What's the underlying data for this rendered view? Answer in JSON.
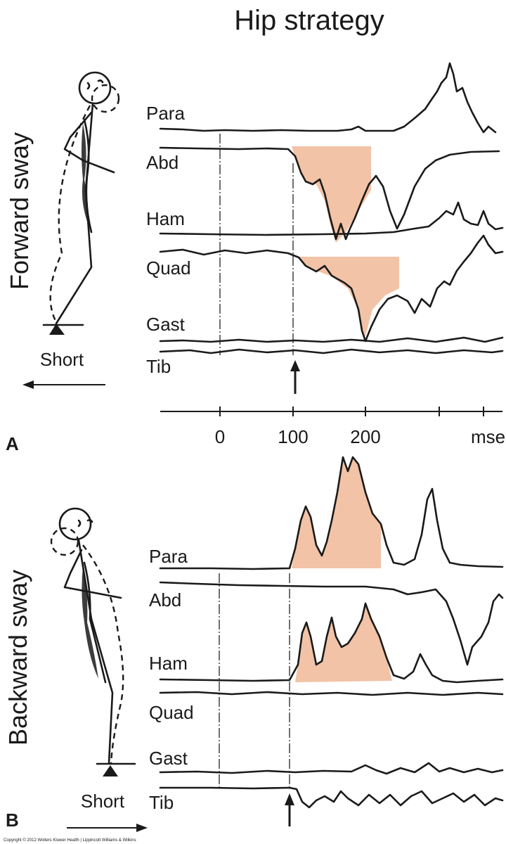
{
  "title": "Hip strategy",
  "panels": [
    {
      "panel_letter": "A",
      "side_label": "Forward sway",
      "platform_label": "Short",
      "arrow_direction": "left",
      "muscles": [
        "Para",
        "Abd",
        "Ham",
        "Quad",
        "Gast",
        "Tib"
      ],
      "shaded": [
        "Abd",
        "Quad"
      ],
      "stimulus_marker_ms": 90
    },
    {
      "panel_letter": "B",
      "side_label": "Backward sway",
      "platform_label": "Short",
      "arrow_direction": "right",
      "muscles": [
        "Para",
        "Abd",
        "Ham",
        "Quad",
        "Gast",
        "Tib"
      ],
      "shaded": [
        "Para",
        "Ham"
      ],
      "stimulus_marker_ms": 90
    }
  ],
  "time_axis": {
    "ticks": [
      "0",
      "100",
      "200"
    ],
    "unit": "msec"
  },
  "colors": {
    "shading": "#f2c3a6",
    "ink": "#1a1a1a"
  },
  "footer": "Copyright © 2012 Wolters Kluwer Health | Lippincott Williams & Wilkins"
}
